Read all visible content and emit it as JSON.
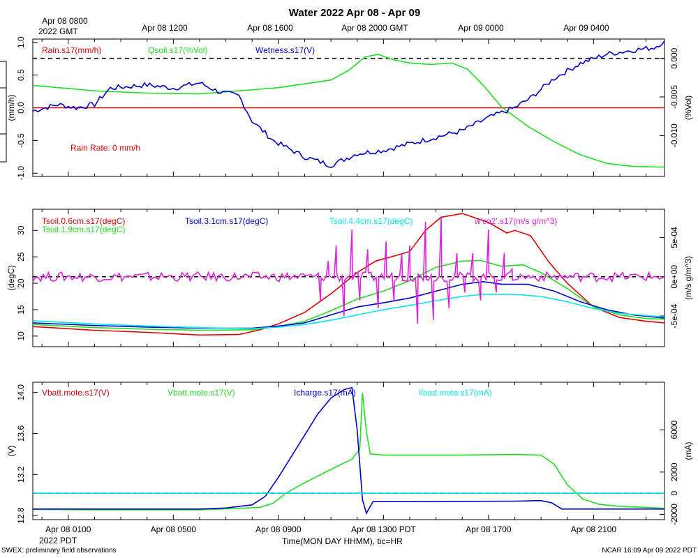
{
  "title": "Water 2022 Apr 08 - Apr 09",
  "footer_left": "SWEX: preliminary field observations",
  "footer_right": "NCAR 16:09 Apr 09 2022 PDT",
  "xaxis_bottom": {
    "label": "Time(MON DAY HHMM), tic=HR",
    "ticks": [
      "Apr 08 0100",
      "Apr 08 0500",
      "Apr 08 0900",
      "Apr 08 1300 PDT",
      "Apr 08 1700",
      "Apr 08 2100"
    ],
    "start_label": "2022 PDT"
  },
  "xaxis_top": {
    "ticks": [
      "Apr 08 0800",
      "Apr 08 1200",
      "Apr 08 1600",
      "Apr 08 2000 GMT",
      "Apr 09 0000",
      "Apr 09 0400"
    ],
    "start_label": "2022 GMT"
  },
  "colors": {
    "red": "#e00000",
    "green": "#22dd22",
    "blue": "#0000cc",
    "cyan": "#00e5ee",
    "magenta": "#e020e0",
    "black": "#000000"
  },
  "chart_data": [
    {
      "type": "line",
      "x_range_hours_pdt": [
        23.65,
        47.7
      ],
      "left_axis": {
        "label": "(mm/h)",
        "range": [
          -1.05,
          1.05
        ],
        "ticks": [
          "1.0",
          "0.5",
          "0.0",
          "-0.5",
          "-1.0"
        ]
      },
      "right_axis": {
        "label": "(%Vol)",
        "range": [
          -0.0153,
          0.0025
        ],
        "ticks": [
          "0.000",
          "-0.005",
          "-0.010"
        ]
      },
      "legend": [
        "Rain.s17(mm/h)",
        "Qsoil.s17(%Vol)",
        "Wetness.s17(V)"
      ],
      "annotation": "Rain Rate: 0 mm/h",
      "series": [
        {
          "name": "Rain.s17(mm/h)",
          "axis": "left",
          "color": "red",
          "points": [
            [
              23.65,
              0
            ],
            [
              47.7,
              0
            ]
          ]
        },
        {
          "name": "Qsoil.s17(%Vol)",
          "axis": "right",
          "color": "green",
          "points": [
            [
              23.65,
              -0.0035
            ],
            [
              26,
              -0.0042
            ],
            [
              28,
              -0.0045
            ],
            [
              30,
              -0.0046
            ],
            [
              31.5,
              -0.0042
            ],
            [
              33,
              -0.0038
            ],
            [
              35,
              -0.0028
            ],
            [
              35.7,
              -0.0015
            ],
            [
              36.3,
              0.0002
            ],
            [
              36.8,
              0.0005
            ],
            [
              37.4,
              -0.0002
            ],
            [
              38,
              -0.0006
            ],
            [
              38.8,
              -0.0008
            ],
            [
              39.6,
              -0.0006
            ],
            [
              40.2,
              -0.0014
            ],
            [
              40.8,
              -0.0035
            ],
            [
              41.5,
              -0.0063
            ],
            [
              42.5,
              -0.0088
            ],
            [
              43.5,
              -0.0108
            ],
            [
              44.5,
              -0.0125
            ],
            [
              45.5,
              -0.0136
            ],
            [
              46.5,
              -0.014
            ],
            [
              47.7,
              -0.0141
            ]
          ]
        },
        {
          "name": "Wetness.s17(V)",
          "axis": "left",
          "color": "blue",
          "noise": 0.04,
          "points": [
            [
              23.65,
              -0.05
            ],
            [
              24.6,
              0.05
            ],
            [
              25.3,
              0.0
            ],
            [
              26,
              0.05
            ],
            [
              26.6,
              0.3
            ],
            [
              28,
              0.35
            ],
            [
              29,
              0.3
            ],
            [
              30,
              0.38
            ],
            [
              30.7,
              0.25
            ],
            [
              31.5,
              0.18
            ],
            [
              32,
              -0.2
            ],
            [
              32.8,
              -0.5
            ],
            [
              34,
              -0.75
            ],
            [
              35,
              -0.88
            ],
            [
              36,
              -0.7
            ],
            [
              37,
              -0.65
            ],
            [
              38,
              -0.55
            ],
            [
              39,
              -0.45
            ],
            [
              40,
              -0.35
            ],
            [
              41,
              -0.15
            ],
            [
              42,
              0.0
            ],
            [
              42.6,
              0.15
            ],
            [
              43.5,
              0.45
            ],
            [
              44.5,
              0.68
            ],
            [
              45.5,
              0.82
            ],
            [
              46.5,
              0.88
            ],
            [
              47.3,
              0.92
            ],
            [
              47.7,
              1.02
            ]
          ]
        }
      ]
    },
    {
      "type": "line",
      "x_range_hours_pdt": [
        23.65,
        47.7
      ],
      "left_axis": {
        "label": "(degC)",
        "range": [
          8,
          34
        ],
        "ticks": [
          "30",
          "25",
          "20",
          "15",
          "10"
        ]
      },
      "right_axis": {
        "label": "(m/s g/m^3)",
        "range": [
          -0.00089,
          0.00086
        ],
        "ticks": [
          "5e-04",
          "0e+00",
          "-5e-04"
        ]
      },
      "legend": [
        "Tsoil.0.6cm.s17(degC)",
        "Tsoil.1.9cm.s17(degC)",
        "Tsoil.3.1cm.s17(degC)",
        "Tsoil.4.4cm.s17(degC)",
        "w'co2'.s17(m/s g/m^3)"
      ],
      "series": [
        {
          "name": "Tsoil.0.6cm.s17(degC)",
          "axis": "left",
          "color": "red",
          "points": [
            [
              23.65,
              11.8
            ],
            [
              26,
              11.1
            ],
            [
              28,
              10.7
            ],
            [
              30,
              10.2
            ],
            [
              31.5,
              10.3
            ],
            [
              32.3,
              11.2
            ],
            [
              33,
              12.3
            ],
            [
              34,
              14.5
            ],
            [
              35,
              18
            ],
            [
              36,
              22
            ],
            [
              36.7,
              24.2
            ],
            [
              37.3,
              25
            ],
            [
              38,
              26
            ],
            [
              38.6,
              30
            ],
            [
              39.2,
              32.5
            ],
            [
              40,
              33.2
            ],
            [
              41,
              31.5
            ],
            [
              41.7,
              29.5
            ],
            [
              42,
              30
            ],
            [
              42.6,
              29
            ],
            [
              43.3,
              24
            ],
            [
              44,
              20
            ],
            [
              45,
              15.5
            ],
            [
              46,
              13.5
            ],
            [
              47,
              12.8
            ],
            [
              47.7,
              12.5
            ]
          ]
        },
        {
          "name": "Tsoil.1.9cm.s17(degC)",
          "axis": "left",
          "color": "green",
          "points": [
            [
              23.65,
              12.2
            ],
            [
              26,
              11.6
            ],
            [
              28,
              11.3
            ],
            [
              30,
              11.1
            ],
            [
              32,
              11.2
            ],
            [
              33,
              11.8
            ],
            [
              34,
              12.8
            ],
            [
              35,
              14.8
            ],
            [
              36,
              17
            ],
            [
              37,
              18.5
            ],
            [
              38,
              20.5
            ],
            [
              39,
              23
            ],
            [
              40,
              24.2
            ],
            [
              40.7,
              24.3
            ],
            [
              41.5,
              23.2
            ],
            [
              42.3,
              23.5
            ],
            [
              43,
              22
            ],
            [
              44,
              19
            ],
            [
              45,
              15.5
            ],
            [
              46,
              14
            ],
            [
              47,
              13.3
            ],
            [
              47.7,
              13.2
            ]
          ]
        },
        {
          "name": "Tsoil.3.1cm.s17(degC)",
          "axis": "left",
          "color": "blue",
          "points": [
            [
              23.65,
              12.5
            ],
            [
              26,
              12
            ],
            [
              28,
              11.7
            ],
            [
              30,
              11.5
            ],
            [
              32,
              11.5
            ],
            [
              33,
              11.9
            ],
            [
              34,
              12.5
            ],
            [
              35,
              14
            ],
            [
              36,
              15.5
            ],
            [
              37,
              16.3
            ],
            [
              38,
              17.2
            ],
            [
              39,
              18.5
            ],
            [
              40,
              19.8
            ],
            [
              40.8,
              20.3
            ],
            [
              41.5,
              19.8
            ],
            [
              42.5,
              19.8
            ],
            [
              43.5,
              18.5
            ],
            [
              44.5,
              16.5
            ],
            [
              45.5,
              15
            ],
            [
              46.5,
              14
            ],
            [
              47.7,
              13.4
            ]
          ]
        },
        {
          "name": "Tsoil.4.4cm.s17(degC)",
          "axis": "left",
          "color": "cyan",
          "points": [
            [
              23.65,
              12.9
            ],
            [
              26,
              12.3
            ],
            [
              28,
              11.9
            ],
            [
              30,
              11.6
            ],
            [
              32,
              11.4
            ],
            [
              33,
              11.7
            ],
            [
              34,
              12.2
            ],
            [
              35,
              13
            ],
            [
              36,
              14
            ],
            [
              37,
              15
            ],
            [
              38,
              15.8
            ],
            [
              39,
              16.7
            ],
            [
              40,
              17.5
            ],
            [
              40.8,
              17.9
            ],
            [
              42,
              17.9
            ],
            [
              43,
              17.5
            ],
            [
              44,
              16.5
            ],
            [
              45,
              15.2
            ],
            [
              46,
              14.3
            ],
            [
              47.7,
              13.6
            ]
          ]
        },
        {
          "name": "w'co2'.s17(m/s g/m^3)",
          "axis": "right",
          "color": "magenta",
          "noise": 6e-05,
          "spikes": [
            [
              34.6,
              -0.0003
            ],
            [
              34.9,
              0.0002
            ],
            [
              35.2,
              0.0004
            ],
            [
              35.5,
              -0.0005
            ],
            [
              35.8,
              0.0006
            ],
            [
              36.1,
              -0.0003
            ],
            [
              36.4,
              0.00035
            ],
            [
              36.8,
              -0.0004
            ],
            [
              37.1,
              0.00045
            ],
            [
              37.4,
              -0.0003
            ],
            [
              37.7,
              0.0003
            ],
            [
              38.0,
              0.0004
            ],
            [
              38.3,
              -0.0006
            ],
            [
              38.6,
              0.0007
            ],
            [
              38.9,
              -0.00055
            ],
            [
              39.2,
              0.00075
            ],
            [
              39.5,
              -0.0004
            ],
            [
              39.8,
              0.0003
            ],
            [
              40.1,
              -0.0002
            ],
            [
              40.4,
              0.0003
            ],
            [
              40.7,
              -0.0003
            ],
            [
              41.0,
              0.0006
            ],
            [
              41.3,
              -0.0002
            ],
            [
              41.6,
              0.0003
            ],
            [
              41.9,
              0.0001
            ]
          ],
          "points": [
            [
              23.65,
              0.0
            ],
            [
              47.7,
              0.0
            ]
          ]
        }
      ]
    },
    {
      "type": "line",
      "x_range_hours_pdt": [
        23.65,
        47.7
      ],
      "left_axis": {
        "label": "(V)",
        "range": [
          12.76,
          14.1
        ],
        "ticks": [
          "14.0",
          "13.6",
          "13.2",
          "12.8"
        ]
      },
      "right_axis": {
        "label": "(mA)",
        "range": [
          -2500,
          10500
        ],
        "ticks": [
          "6000",
          "2000",
          "0",
          "-2000"
        ]
      },
      "legend": [
        "Vbatt.mote.s17(V)",
        "Vbatt.mote.s17(V)",
        "Icharge.s17(mA)",
        "Iload.mote.s17(mA)"
      ],
      "series": [
        {
          "name": "Vbatt.mote.s17(V)",
          "axis": "left",
          "color": "green",
          "points": [
            [
              23.65,
              12.86
            ],
            [
              26,
              12.855
            ],
            [
              28,
              12.855
            ],
            [
              30,
              12.855
            ],
            [
              31.5,
              12.87
            ],
            [
              32.3,
              12.88
            ],
            [
              32.8,
              12.92
            ],
            [
              33.3,
              13.02
            ],
            [
              34,
              13.12
            ],
            [
              35,
              13.25
            ],
            [
              35.8,
              13.35
            ],
            [
              36.1,
              13.45
            ],
            [
              36.2,
              14.0
            ],
            [
              36.35,
              13.62
            ],
            [
              36.5,
              13.4
            ],
            [
              37,
              13.39
            ],
            [
              38,
              13.39
            ],
            [
              40,
              13.39
            ],
            [
              42,
              13.395
            ],
            [
              43,
              13.39
            ],
            [
              43.5,
              13.3
            ],
            [
              44,
              13.1
            ],
            [
              44.6,
              12.96
            ],
            [
              45.2,
              12.91
            ],
            [
              46,
              12.89
            ],
            [
              47,
              12.88
            ],
            [
              47.7,
              12.87
            ]
          ]
        },
        {
          "name": "Icharge.s17(mA)",
          "axis": "right",
          "color": "blue",
          "points": [
            [
              23.65,
              -1500
            ],
            [
              30,
              -1500
            ],
            [
              31,
              -1400
            ],
            [
              32,
              -1100
            ],
            [
              32.5,
              -300
            ],
            [
              33,
              1500
            ],
            [
              33.5,
              3500
            ],
            [
              34,
              5500
            ],
            [
              34.5,
              7500
            ],
            [
              35,
              9000
            ],
            [
              35.5,
              9800
            ],
            [
              35.8,
              10000
            ],
            [
              36,
              6000
            ],
            [
              36.2,
              -600
            ],
            [
              36.35,
              -1900
            ],
            [
              36.6,
              -800
            ],
            [
              38,
              -800
            ],
            [
              42,
              -750
            ],
            [
              43,
              -700
            ],
            [
              43.4,
              -900
            ],
            [
              43.8,
              -1500
            ],
            [
              45,
              -1500
            ],
            [
              47.7,
              -1500
            ]
          ]
        },
        {
          "name": "Iload.mote.s17(mA)",
          "axis": "right",
          "color": "cyan",
          "points": [
            [
              23.65,
              0
            ],
            [
              47.7,
              0
            ]
          ]
        }
      ]
    }
  ]
}
